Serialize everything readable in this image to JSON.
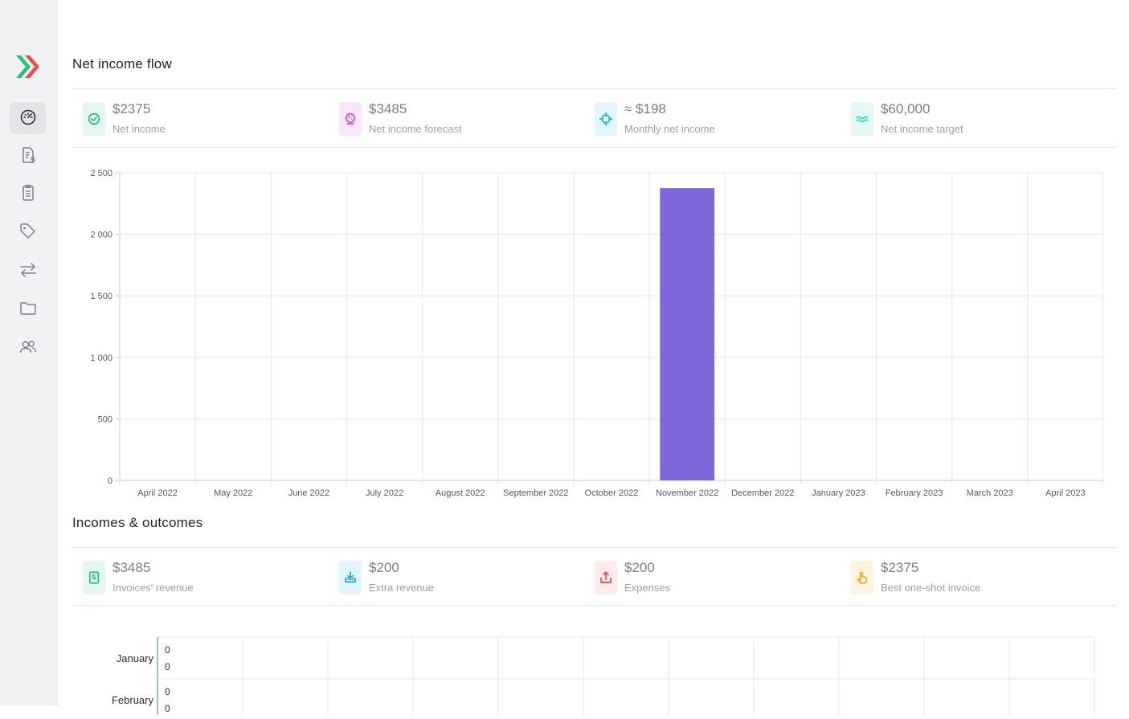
{
  "colors": {
    "accent_green": "#1fc37e",
    "accent_red": "#f04a4a",
    "bar": "#8068dc",
    "grid": "#e6e7ea",
    "axis_text": "#555a66"
  },
  "sidebar": {
    "items": [
      {
        "icon": "dashboard-gauge-icon",
        "active": true
      },
      {
        "icon": "invoice-dollar-icon",
        "active": false
      },
      {
        "icon": "clipboard-list-icon",
        "active": false
      },
      {
        "icon": "tag-icon",
        "active": false
      },
      {
        "icon": "transfer-arrows-icon",
        "active": false
      },
      {
        "icon": "folder-icon",
        "active": false
      },
      {
        "icon": "users-icon",
        "active": false
      }
    ]
  },
  "net_income": {
    "title": "Net income flow",
    "stats": [
      {
        "value": "$2375",
        "label": "Net income",
        "icon": "check-circle-icon",
        "color": "#1fc37e",
        "bg": "#e4f8ef"
      },
      {
        "value": "$3485",
        "label": "Net income forecast",
        "icon": "crystal-ball-icon",
        "color": "#d24ae0",
        "bg": "#f9e7fb"
      },
      {
        "value": "≈ $198",
        "label": "Monthly net income",
        "icon": "crosshair-icon",
        "color": "#19b6d8",
        "bg": "#e3f6fb"
      },
      {
        "value": "$60,000",
        "label": "Net income target",
        "icon": "waves-icon",
        "color": "#2fd6c0",
        "bg": "#e4f9f6"
      }
    ]
  },
  "chart_data": {
    "type": "bar",
    "categories": [
      "April 2022",
      "May 2022",
      "June 2022",
      "July 2022",
      "August 2022",
      "September 2022",
      "October 2022",
      "November 2022",
      "December 2022",
      "January 2023",
      "February 2023",
      "March 2023",
      "April 2023"
    ],
    "values": [
      0,
      0,
      0,
      0,
      0,
      0,
      0,
      2375,
      0,
      0,
      0,
      0,
      0
    ],
    "y_ticks": [
      "0",
      "500",
      "1 000",
      "1 500",
      "2 000",
      "2 500"
    ],
    "ylim": [
      0,
      2500
    ],
    "grid": true
  },
  "incomes": {
    "title": "Incomes & outcomes",
    "stats": [
      {
        "value": "$3485",
        "label": "Invoices' revenue",
        "icon": "invoice-icon",
        "color": "#1fc37e",
        "bg": "#e4f8ef"
      },
      {
        "value": "$200",
        "label": "Extra revenue",
        "icon": "inbox-download-icon",
        "color": "#19a9d8",
        "bg": "#e3f4fb"
      },
      {
        "value": "$200",
        "label": "Expenses",
        "icon": "outbox-upload-icon",
        "color": "#f04a4a",
        "bg": "#fdeaea"
      },
      {
        "value": "$2375",
        "label": "Best one-shot invoice",
        "icon": "hand-pointer-icon",
        "color": "#f2a516",
        "bg": "#fdf3df"
      }
    ]
  },
  "hchart": {
    "rows": [
      {
        "label": "January",
        "values": [
          "0",
          "0"
        ]
      },
      {
        "label": "February",
        "values": [
          "0",
          "0"
        ]
      }
    ]
  }
}
